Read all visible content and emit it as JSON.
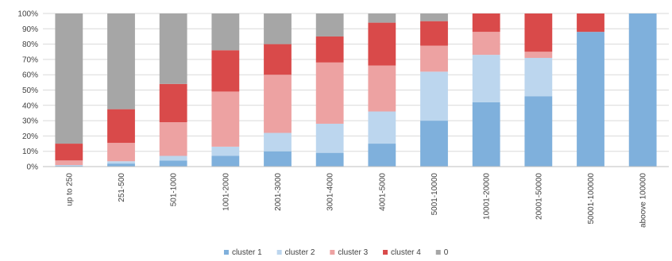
{
  "chart_data": {
    "type": "bar",
    "stacked": true,
    "percent_stacked": true,
    "categories": [
      "up to 250",
      "251-500",
      "501-1000",
      "1001-2000",
      "2001-3000",
      "3001-4000",
      "4001-5000",
      "5001-10000",
      "10001-20000",
      "20001-50000",
      "50001-100000",
      "aboove 100000"
    ],
    "series": [
      {
        "name": "cluster 1",
        "color": "#7fb0dc",
        "values": [
          0.5,
          2,
          4,
          7,
          10,
          9,
          15,
          30,
          42,
          46,
          88,
          100
        ]
      },
      {
        "name": "cluster 2",
        "color": "#bcd6ee",
        "values": [
          0.5,
          1.5,
          3,
          6,
          12,
          19,
          21,
          32,
          31,
          25,
          0,
          0
        ]
      },
      {
        "name": "cluster 3",
        "color": "#eda2a2",
        "values": [
          3,
          12,
          22,
          36,
          38,
          40,
          30,
          17,
          15,
          4,
          0,
          0
        ]
      },
      {
        "name": "cluster 4",
        "color": "#d94a4a",
        "values": [
          11,
          22,
          25,
          27,
          20,
          17,
          28,
          16,
          12,
          25,
          12,
          0
        ]
      },
      {
        "name": "0",
        "color": "#a6a6a6",
        "values": [
          85,
          62.5,
          46,
          24,
          20,
          15,
          6,
          5,
          0,
          0,
          0,
          0
        ]
      }
    ],
    "y_tick_labels": [
      "0%",
      "10%",
      "20%",
      "30%",
      "40%",
      "50%",
      "60%",
      "70%",
      "80%",
      "90%",
      "100%"
    ],
    "ylim": [
      0,
      100
    ],
    "grid": true,
    "legend_placement": "bottom"
  }
}
